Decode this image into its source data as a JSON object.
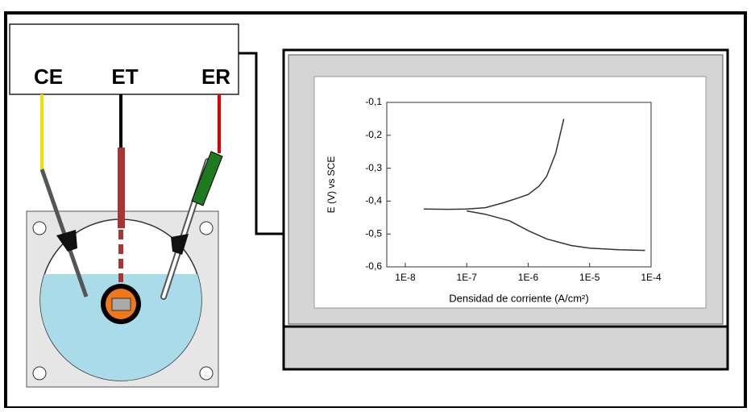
{
  "potentiostat": {
    "labels": [
      "CE",
      "ET",
      "ER"
    ]
  },
  "chart_data": {
    "type": "line",
    "xlabel": "Densidad de corriente (A/cm²)",
    "ylabel": "E (V) vs SCE",
    "xscale": "log",
    "xlim": [
      5e-09,
      0.0001
    ],
    "ylim": [
      -0.6,
      -0.1
    ],
    "xticks": [
      {
        "value": 1e-08,
        "label": "1E-8"
      },
      {
        "value": 1e-07,
        "label": "1E-7"
      },
      {
        "value": 1e-06,
        "label": "1E-6"
      },
      {
        "value": 1e-05,
        "label": "1E-5"
      },
      {
        "value": 0.0001,
        "label": "1E-4"
      }
    ],
    "yticks": [
      {
        "value": -0.6,
        "label": "-0,6"
      },
      {
        "value": -0.5,
        "label": "-0,5"
      },
      {
        "value": -0.4,
        "label": "-0,4"
      },
      {
        "value": -0.3,
        "label": "-0,3"
      },
      {
        "value": -0.2,
        "label": "-0,2"
      },
      {
        "value": -0.1,
        "label": "-0,1"
      }
    ],
    "series": [
      {
        "color": "#333333",
        "x": [
          2e-08,
          5e-08,
          1e-07,
          2e-07,
          4e-07,
          7e-07,
          1e-06,
          1.5e-06,
          2e-06,
          2.8e-06,
          3.8e-06
        ],
        "values": [
          -0.424,
          -0.425,
          -0.424,
          -0.42,
          -0.405,
          -0.39,
          -0.38,
          -0.355,
          -0.325,
          -0.255,
          -0.15
        ]
      },
      {
        "color": "#333333",
        "x": [
          1e-07,
          2e-07,
          5e-07,
          1e-06,
          2e-06,
          5e-06,
          1e-05,
          3e-05,
          8e-05
        ],
        "values": [
          -0.43,
          -0.44,
          -0.46,
          -0.49,
          -0.515,
          -0.535,
          -0.543,
          -0.548,
          -0.55
        ]
      }
    ]
  }
}
